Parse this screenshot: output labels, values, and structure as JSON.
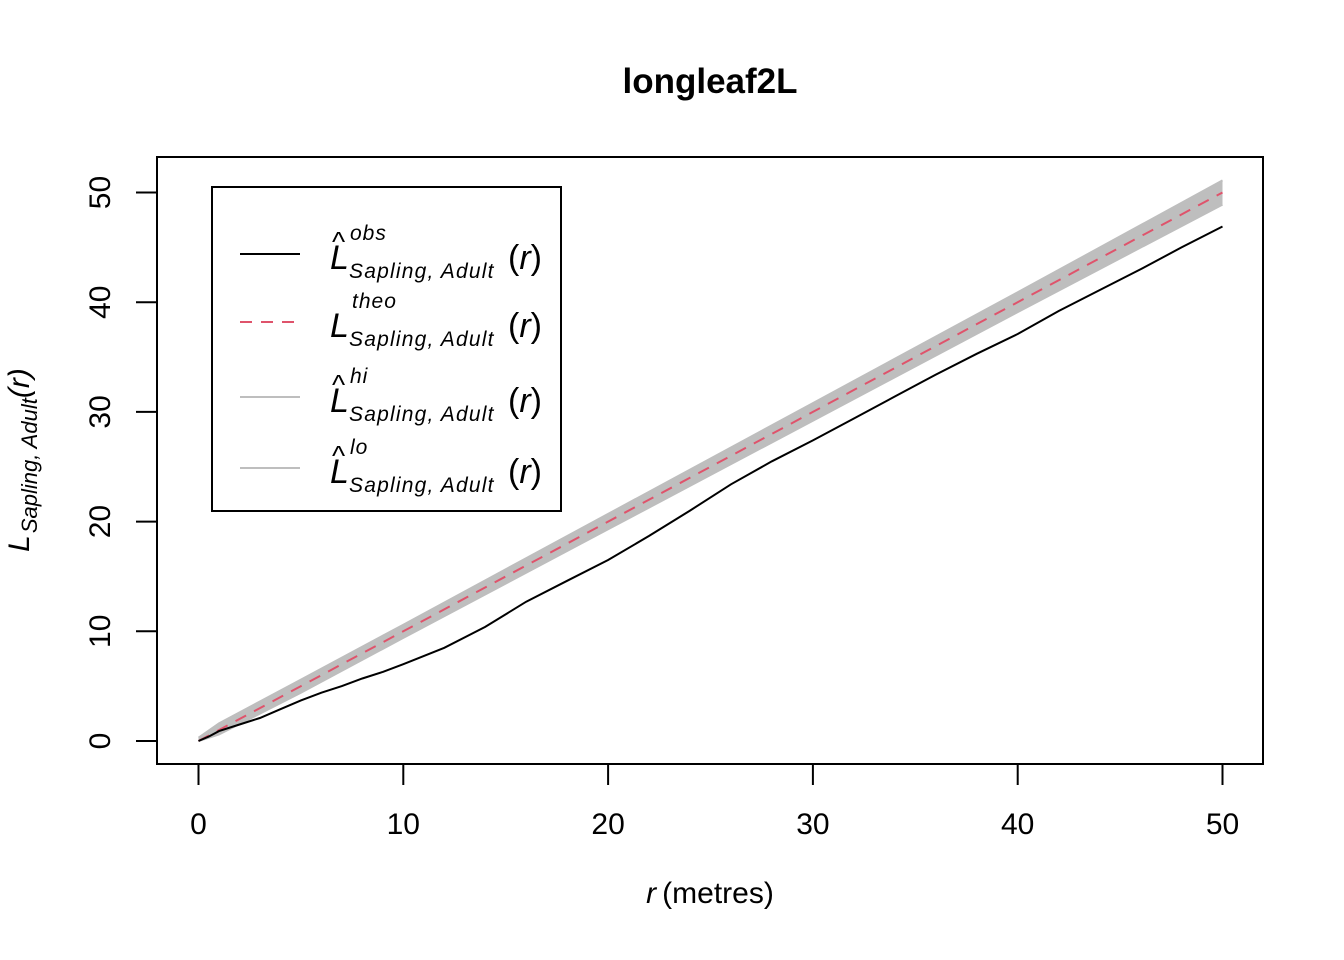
{
  "chart_data": {
    "type": "line",
    "title": "longleaf2L",
    "xlabel": {
      "var": "r",
      "unit": "(metres)"
    },
    "ylabel": {
      "main": "L",
      "sub": "Sapling, Adult",
      "arg": "(r)"
    },
    "xlim": [
      -2,
      50
    ],
    "ylim": [
      -2,
      52
    ],
    "xticks": [
      0,
      10,
      20,
      30,
      40,
      50
    ],
    "yticks": [
      0,
      10,
      20,
      30,
      40,
      50
    ],
    "legend_position": "top-left",
    "series": [
      {
        "key": "obs",
        "name": "L̂obs Sapling, Adult(r)",
        "label": {
          "hat": true,
          "sup": "obs",
          "sub": "Sapling, Adult"
        },
        "style": "solid",
        "color": "#000000",
        "x": [
          0,
          0.5,
          1,
          2,
          3,
          4,
          5,
          6,
          7,
          8,
          9,
          10,
          12,
          14,
          16,
          18,
          20,
          22,
          24,
          26,
          28,
          30,
          32,
          34,
          36,
          38,
          40,
          42,
          44,
          46,
          48,
          50
        ],
        "y": [
          0,
          0.4,
          0.9,
          1.5,
          2.1,
          2.9,
          3.7,
          4.4,
          5.0,
          5.7,
          6.3,
          7.0,
          8.5,
          10.4,
          12.7,
          14.6,
          16.5,
          18.7,
          21.0,
          23.4,
          25.5,
          27.4,
          29.4,
          31.4,
          33.4,
          35.3,
          37.1,
          39.2,
          41.1,
          43.0,
          45.0,
          46.9
        ]
      },
      {
        "key": "theo",
        "name": "Ltheo Sapling, Adult(r)",
        "label": {
          "hat": false,
          "sup": "theo",
          "sub": "Sapling, Adult"
        },
        "style": "dashed",
        "color": "#df536b",
        "x": [
          0,
          50
        ],
        "y": [
          0,
          50
        ]
      },
      {
        "key": "hi",
        "name": "L̂hi Sapling, Adult(r)",
        "label": {
          "hat": true,
          "sup": "hi",
          "sub": "Sapling, Adult"
        },
        "style": "solid",
        "color": "#bebebe",
        "x": [
          0,
          1,
          5,
          10,
          20,
          30,
          40,
          50
        ],
        "y": [
          0.3,
          1.6,
          5.6,
          10.6,
          20.7,
          30.8,
          40.9,
          51.1
        ]
      },
      {
        "key": "lo",
        "name": "L̂lo Sapling, Adult(r)",
        "label": {
          "hat": true,
          "sup": "lo",
          "sub": "Sapling, Adult"
        },
        "style": "solid",
        "color": "#bebebe",
        "x": [
          0,
          1,
          5,
          10,
          20,
          30,
          40,
          50
        ],
        "y": [
          0,
          0.6,
          4.4,
          9.4,
          19.3,
          29.2,
          39.1,
          48.9
        ]
      }
    ]
  }
}
